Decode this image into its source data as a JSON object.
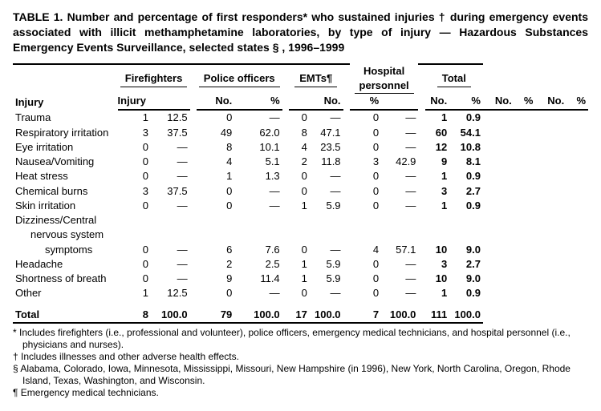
{
  "title": "TABLE 1. Number and percentage of first responders* who sustained injuries † during emergency events associated with illicit methamphetamine laboratories, by type of injury — Hazardous Substances Emergency Events Surveillance, selected states § , 1996–1999",
  "groups": [
    "Firefighters",
    "Police officers",
    "EMTs¶",
    "Hospital personnel",
    "Total"
  ],
  "subcols": {
    "no": "No.",
    "pct": "%"
  },
  "injuryLabel": "Injury",
  "rows": [
    {
      "label": "Trauma",
      "vals": [
        [
          "1",
          "12.5"
        ],
        [
          "0",
          "—"
        ],
        [
          "0",
          "—"
        ],
        [
          "0",
          "—"
        ],
        [
          "1",
          "0.9"
        ]
      ]
    },
    {
      "label": "Respiratory irritation",
      "vals": [
        [
          "3",
          "37.5"
        ],
        [
          "49",
          "62.0"
        ],
        [
          "8",
          "47.1"
        ],
        [
          "0",
          "—"
        ],
        [
          "60",
          "54.1"
        ]
      ]
    },
    {
      "label": "Eye irritation",
      "vals": [
        [
          "0",
          "—"
        ],
        [
          "8",
          "10.1"
        ],
        [
          "4",
          "23.5"
        ],
        [
          "0",
          "—"
        ],
        [
          "12",
          "10.8"
        ]
      ]
    },
    {
      "label": "Nausea/Vomiting",
      "vals": [
        [
          "0",
          "—"
        ],
        [
          "4",
          "5.1"
        ],
        [
          "2",
          "11.8"
        ],
        [
          "3",
          "42.9"
        ],
        [
          "9",
          "8.1"
        ]
      ]
    },
    {
      "label": "Heat stress",
      "vals": [
        [
          "0",
          "—"
        ],
        [
          "1",
          "1.3"
        ],
        [
          "0",
          "—"
        ],
        [
          "0",
          "—"
        ],
        [
          "1",
          "0.9"
        ]
      ]
    },
    {
      "label": "Chemical burns",
      "vals": [
        [
          "3",
          "37.5"
        ],
        [
          "0",
          "—"
        ],
        [
          "0",
          "—"
        ],
        [
          "0",
          "—"
        ],
        [
          "3",
          "2.7"
        ]
      ]
    },
    {
      "label": "Skin irritation",
      "vals": [
        [
          "0",
          "—"
        ],
        [
          "0",
          "—"
        ],
        [
          "1",
          "5.9"
        ],
        [
          "0",
          "—"
        ],
        [
          "1",
          "0.9"
        ]
      ]
    },
    {
      "label": "Dizziness/Central",
      "vals": null,
      "noData": true
    },
    {
      "label": "nervous system",
      "vals": null,
      "noData": true,
      "indent": 1
    },
    {
      "label": "symptoms",
      "vals": [
        [
          "0",
          "—"
        ],
        [
          "6",
          "7.6"
        ],
        [
          "0",
          "—"
        ],
        [
          "4",
          "57.1"
        ],
        [
          "10",
          "9.0"
        ]
      ],
      "indent": 2
    },
    {
      "label": "Headache",
      "vals": [
        [
          "0",
          "—"
        ],
        [
          "2",
          "2.5"
        ],
        [
          "1",
          "5.9"
        ],
        [
          "0",
          "—"
        ],
        [
          "3",
          "2.7"
        ]
      ]
    },
    {
      "label": "Shortness of breath",
      "vals": [
        [
          "0",
          "—"
        ],
        [
          "9",
          "11.4"
        ],
        [
          "1",
          "5.9"
        ],
        [
          "0",
          "—"
        ],
        [
          "10",
          "9.0"
        ]
      ]
    },
    {
      "label": "Other",
      "vals": [
        [
          "1",
          "12.5"
        ],
        [
          "0",
          "—"
        ],
        [
          "0",
          "—"
        ],
        [
          "0",
          "—"
        ],
        [
          "1",
          "0.9"
        ]
      ]
    }
  ],
  "totalRow": {
    "label": "Total",
    "vals": [
      [
        "8",
        "100.0"
      ],
      [
        "79",
        "100.0"
      ],
      [
        "17",
        "100.0"
      ],
      [
        "7",
        "100.0"
      ],
      [
        "111",
        "100.0"
      ]
    ]
  },
  "footnotes": [
    "* Includes firefighters (i.e., professional and volunteer), police officers, emergency medical technicians, and hospital personnel (i.e., physicians and nurses).",
    "† Includes illnesses and other adverse health effects.",
    "§ Alabama, Colorado, Iowa, Minnesota, Mississippi, Missouri, New Hampshire (in 1996), New York, North Carolina, Oregon, Rhode Island, Texas, Washington, and Wisconsin.",
    "¶ Emergency medical technicians."
  ]
}
